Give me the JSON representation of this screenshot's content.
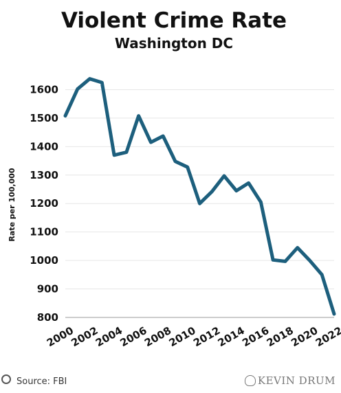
{
  "chart_data": {
    "type": "line",
    "title": "Violent Crime Rate",
    "subtitle": "Washington DC",
    "xlabel": "",
    "ylabel": "Rate per 100,000",
    "xlim": [
      2000,
      2022
    ],
    "ylim": [
      800,
      1700
    ],
    "yticks": [
      800,
      900,
      1000,
      1100,
      1200,
      1300,
      1400,
      1500,
      1600
    ],
    "xticks": [
      2000,
      2002,
      2004,
      2006,
      2008,
      2010,
      2012,
      2014,
      2016,
      2018,
      2020,
      2022
    ],
    "grid": true,
    "x": [
      2000,
      2001,
      2002,
      2003,
      2004,
      2005,
      2006,
      2007,
      2008,
      2009,
      2010,
      2011,
      2012,
      2013,
      2014,
      2015,
      2016,
      2017,
      2018,
      2019,
      2020,
      2021,
      2022
    ],
    "series": [
      {
        "values": [
          1508,
          1602,
          1638,
          1625,
          1370,
          1380,
          1508,
          1415,
          1437,
          1348,
          1328,
          1200,
          1242,
          1297,
          1245,
          1272,
          1205,
          1002,
          997,
          1045,
          1000,
          950,
          812
        ],
        "color": "#1d5f7d"
      }
    ]
  },
  "footer": {
    "source": "Source: FBI",
    "watermark": "KEVIN DRUM"
  }
}
